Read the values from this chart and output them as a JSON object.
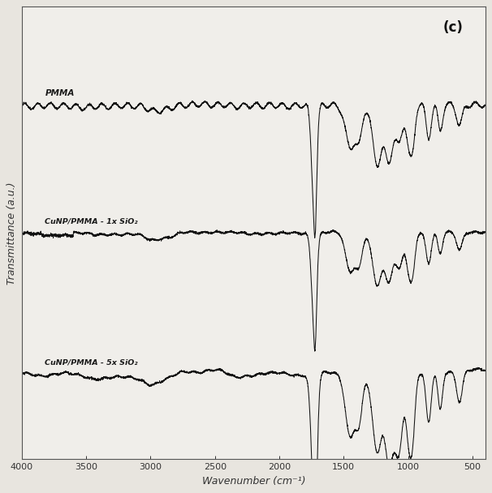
{
  "title_label": "(c)",
  "xlabel": "Wavenumber (cm⁻¹)",
  "ylabel": "Transmittance (a.u.)",
  "xlim": [
    4000,
    400
  ],
  "x_ticks": [
    4000,
    3500,
    3000,
    2500,
    2000,
    1500,
    1000,
    500
  ],
  "series_labels": [
    "PMMA",
    "CuNP/PMMA - 1x SiO₂",
    "CuNP/PMMA - 5x SiO₂"
  ],
  "series_offsets": [
    0.75,
    0.45,
    0.12
  ],
  "background_color": "#f0eeea",
  "line_color": "#111111",
  "seed": 42,
  "fig_bg": "#e8e5df"
}
